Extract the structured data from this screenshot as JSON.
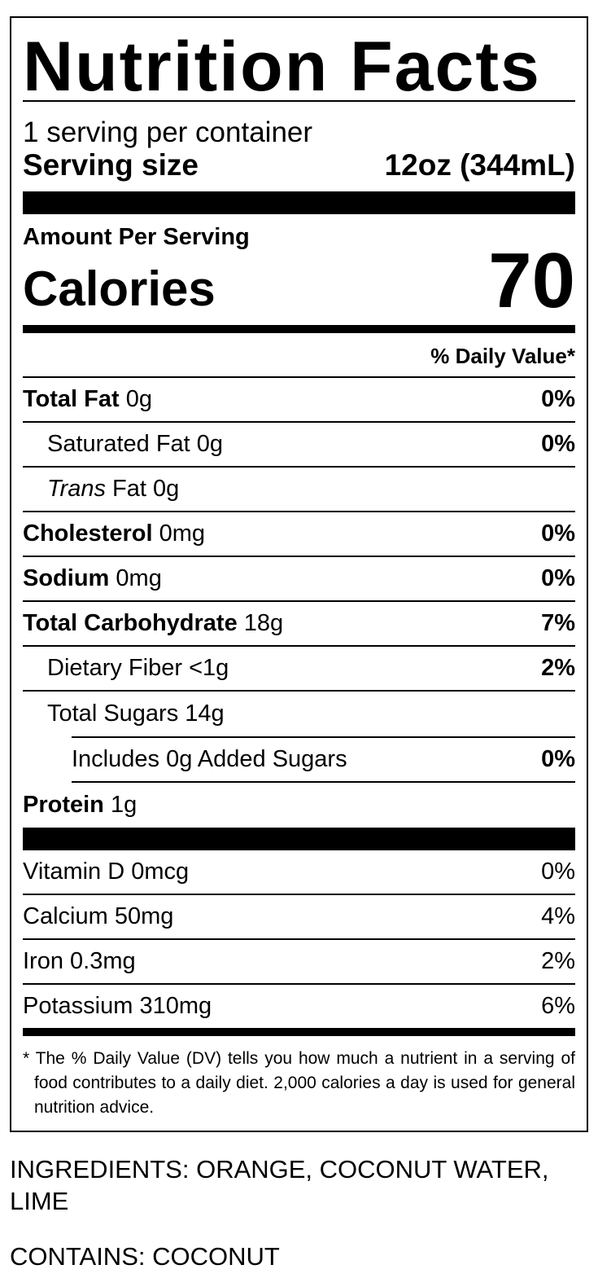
{
  "title": "Nutrition Facts",
  "servings_per_container": "1 serving per container",
  "serving_size": {
    "label": "Serving size",
    "value": "12oz (344mL)"
  },
  "amount_per_serving": "Amount Per Serving",
  "calories": {
    "label": "Calories",
    "value": "70"
  },
  "daily_value_header": "% Daily Value*",
  "nutrients": [
    {
      "name": "Total Fat",
      "amount": "0g",
      "dv": "0%"
    },
    {
      "name": "Saturated Fat",
      "amount": "0g",
      "dv": "0%"
    },
    {
      "name_prefix": "Trans",
      "name": "Fat",
      "amount": "0g"
    },
    {
      "name": "Cholesterol",
      "amount": "0mg",
      "dv": "0%"
    },
    {
      "name": "Sodium",
      "amount": "0mg",
      "dv": "0%"
    },
    {
      "name": "Total Carbohydrate",
      "amount": "18g",
      "dv": "7%"
    },
    {
      "name": "Dietary Fiber",
      "amount": "<1g",
      "dv": "2%"
    },
    {
      "name": "Total Sugars",
      "amount": "14g"
    },
    {
      "name": "Includes 0g Added Sugars",
      "dv": "0%"
    },
    {
      "name": "Protein",
      "amount": "1g"
    }
  ],
  "vitamins": [
    {
      "name": "Vitamin D",
      "amount": "0mcg",
      "dv": "0%"
    },
    {
      "name": "Calcium",
      "amount": "50mg",
      "dv": "4%"
    },
    {
      "name": "Iron",
      "amount": "0.3mg",
      "dv": "2%"
    },
    {
      "name": "Potassium",
      "amount": "310mg",
      "dv": "6%"
    }
  ],
  "footnote": "* The % Daily Value (DV) tells you how much a nutrient in a serving of food contributes to a daily diet. 2,000 calories a day is used for general nutrition advice.",
  "ingredients": "INGREDIENTS: ORANGE, COCONUT WATER, LIME",
  "contains": "CONTAINS: COCONUT"
}
